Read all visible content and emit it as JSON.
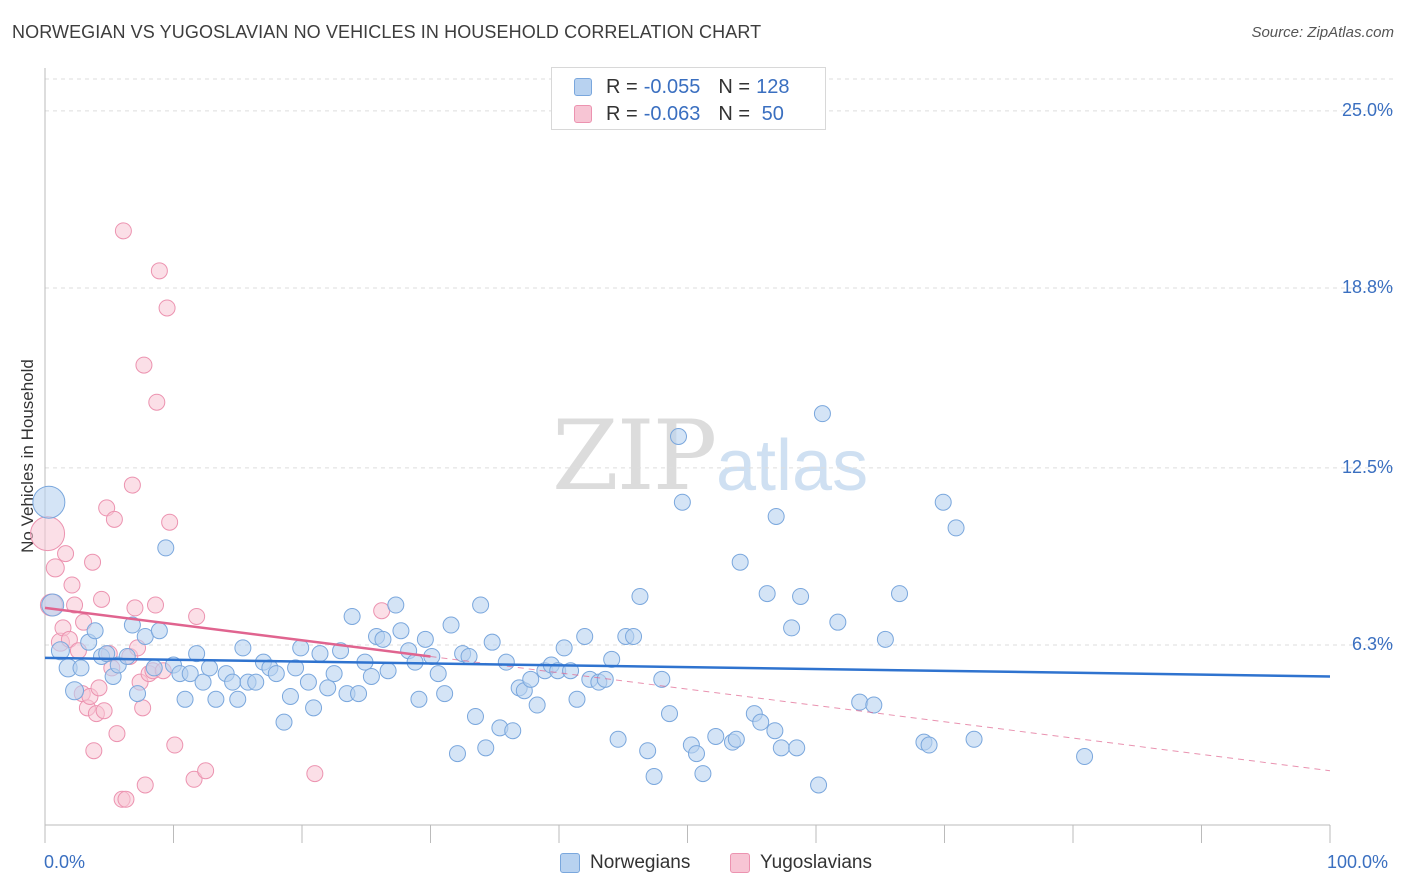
{
  "title": "NORWEGIAN VS YUGOSLAVIAN NO VEHICLES IN HOUSEHOLD CORRELATION CHART",
  "source": "Source: ZipAtlas.com",
  "watermark": {
    "zip": "ZIP",
    "atlas": "atlas"
  },
  "legend": {
    "rows": [
      {
        "r_label": "R =",
        "r_value": "-0.055",
        "n_label": "N =",
        "n_value": "128"
      },
      {
        "r_label": "R =",
        "r_value": "-0.063",
        "n_label": "N =",
        "n_value": " 50"
      }
    ]
  },
  "bottom_legend": {
    "series1": "Norwegians",
    "series2": "Yugoslavians"
  },
  "colors": {
    "blue_fill": "#b8d2f0",
    "blue_stroke": "#7aa7dd",
    "blue_line": "#2f73cf",
    "pink_fill": "#f7c5d4",
    "pink_stroke": "#ec93b0",
    "pink_line": "#e0648f",
    "tick_text": "#3a6fc0",
    "grid": "#dddddd"
  },
  "chart_data": {
    "type": "scatter",
    "title": "NORWEGIAN VS YUGOSLAVIAN NO VEHICLES IN HOUSEHOLD CORRELATION CHART",
    "xlabel": "",
    "ylabel": "No Vehicles in Household",
    "xlim": [
      0,
      100
    ],
    "ylim": [
      0,
      26.5
    ],
    "x_tick_labels": [
      "0.0%",
      "100.0%"
    ],
    "y_ticks": [
      6.3,
      12.5,
      18.8,
      25.0
    ],
    "y_tick_labels": [
      "6.3%",
      "12.5%",
      "18.8%",
      "25.0%"
    ],
    "grid": true,
    "legend_placement": "top-center",
    "series": [
      {
        "name": "Norwegians",
        "r": -0.055,
        "n": 128,
        "trend": {
          "x": [
            0,
            100
          ],
          "y": [
            5.85,
            5.2
          ]
        },
        "points": [
          [
            0.3,
            11.3,
            16
          ],
          [
            0.6,
            7.7,
            11
          ],
          [
            1.2,
            6.1,
            9
          ],
          [
            1.8,
            5.5,
            9
          ],
          [
            2.3,
            4.7,
            9
          ],
          [
            2.8,
            5.5,
            8
          ],
          [
            3.4,
            6.4,
            8
          ],
          [
            3.9,
            6.8,
            8
          ],
          [
            4.4,
            5.9,
            8
          ],
          [
            4.8,
            6.0,
            8
          ],
          [
            5.3,
            5.2,
            8
          ],
          [
            5.7,
            5.6,
            8
          ],
          [
            6.4,
            5.9,
            8
          ],
          [
            6.8,
            7.0,
            8
          ],
          [
            7.2,
            4.6,
            8
          ],
          [
            7.8,
            6.6,
            8
          ],
          [
            8.5,
            5.5,
            8
          ],
          [
            8.9,
            6.8,
            8
          ],
          [
            9.4,
            9.7,
            8
          ],
          [
            10.0,
            5.6,
            8
          ],
          [
            10.5,
            5.3,
            8
          ],
          [
            10.9,
            4.4,
            8
          ],
          [
            11.3,
            5.3,
            8
          ],
          [
            11.8,
            6.0,
            8
          ],
          [
            12.3,
            5.0,
            8
          ],
          [
            12.8,
            5.5,
            8
          ],
          [
            13.3,
            4.4,
            8
          ],
          [
            14.1,
            5.3,
            8
          ],
          [
            14.6,
            5.0,
            8
          ],
          [
            15.0,
            4.4,
            8
          ],
          [
            15.4,
            6.2,
            8
          ],
          [
            15.8,
            5.0,
            8
          ],
          [
            16.4,
            5.0,
            8
          ],
          [
            17.0,
            5.7,
            8
          ],
          [
            17.5,
            5.5,
            8
          ],
          [
            18.0,
            5.3,
            8
          ],
          [
            18.6,
            3.6,
            8
          ],
          [
            19.1,
            4.5,
            8
          ],
          [
            19.5,
            5.5,
            8
          ],
          [
            19.9,
            6.2,
            8
          ],
          [
            20.5,
            5.0,
            8
          ],
          [
            20.9,
            4.1,
            8
          ],
          [
            21.4,
            6.0,
            8
          ],
          [
            22.0,
            4.8,
            8
          ],
          [
            22.5,
            5.3,
            8
          ],
          [
            23.0,
            6.1,
            8
          ],
          [
            23.5,
            4.6,
            8
          ],
          [
            23.9,
            7.3,
            8
          ],
          [
            24.4,
            4.6,
            8
          ],
          [
            24.9,
            5.7,
            8
          ],
          [
            25.4,
            5.2,
            8
          ],
          [
            25.8,
            6.6,
            8
          ],
          [
            26.3,
            6.5,
            8
          ],
          [
            26.7,
            5.4,
            8
          ],
          [
            27.3,
            7.7,
            8
          ],
          [
            27.7,
            6.8,
            8
          ],
          [
            28.3,
            6.1,
            8
          ],
          [
            28.8,
            5.7,
            8
          ],
          [
            29.1,
            4.4,
            8
          ],
          [
            29.6,
            6.5,
            8
          ],
          [
            30.1,
            5.9,
            8
          ],
          [
            30.6,
            5.3,
            8
          ],
          [
            31.1,
            4.6,
            8
          ],
          [
            31.6,
            7.0,
            8
          ],
          [
            32.1,
            2.5,
            8
          ],
          [
            32.5,
            6.0,
            8
          ],
          [
            33.0,
            5.9,
            8
          ],
          [
            33.5,
            3.8,
            8
          ],
          [
            33.9,
            7.7,
            8
          ],
          [
            34.3,
            2.7,
            8
          ],
          [
            34.8,
            6.4,
            8
          ],
          [
            35.4,
            3.4,
            8
          ],
          [
            35.9,
            5.7,
            8
          ],
          [
            36.4,
            3.3,
            8
          ],
          [
            36.9,
            4.8,
            8
          ],
          [
            37.3,
            4.7,
            8
          ],
          [
            37.8,
            5.1,
            8
          ],
          [
            38.3,
            4.2,
            8
          ],
          [
            38.9,
            5.4,
            8
          ],
          [
            39.4,
            5.6,
            8
          ],
          [
            39.9,
            5.4,
            8
          ],
          [
            40.4,
            6.2,
            8
          ],
          [
            40.9,
            5.4,
            8
          ],
          [
            41.4,
            4.4,
            8
          ],
          [
            42.0,
            6.6,
            8
          ],
          [
            42.4,
            5.1,
            8
          ],
          [
            43.1,
            5.0,
            8
          ],
          [
            43.6,
            5.1,
            8
          ],
          [
            44.1,
            5.8,
            8
          ],
          [
            44.6,
            3.0,
            8
          ],
          [
            45.2,
            6.6,
            8
          ],
          [
            45.8,
            6.6,
            8
          ],
          [
            46.3,
            8.0,
            8
          ],
          [
            46.9,
            2.6,
            8
          ],
          [
            47.4,
            1.7,
            8
          ],
          [
            48.0,
            5.1,
            8
          ],
          [
            48.6,
            3.9,
            8
          ],
          [
            49.3,
            13.6,
            8
          ],
          [
            49.6,
            11.3,
            8
          ],
          [
            50.3,
            2.8,
            8
          ],
          [
            50.7,
            2.5,
            8
          ],
          [
            51.2,
            1.8,
            8
          ],
          [
            52.2,
            3.1,
            8
          ],
          [
            53.5,
            2.9,
            8
          ],
          [
            53.8,
            3.0,
            8
          ],
          [
            54.1,
            9.2,
            8
          ],
          [
            55.2,
            3.9,
            8
          ],
          [
            55.7,
            3.6,
            8
          ],
          [
            56.2,
            8.1,
            8
          ],
          [
            56.8,
            3.3,
            8
          ],
          [
            57.3,
            2.7,
            8
          ],
          [
            56.9,
            10.8,
            8
          ],
          [
            58.1,
            6.9,
            8
          ],
          [
            58.8,
            8.0,
            8
          ],
          [
            60.2,
            1.4,
            8
          ],
          [
            60.5,
            14.4,
            8
          ],
          [
            61.7,
            7.1,
            8
          ],
          [
            63.4,
            4.3,
            8
          ],
          [
            64.5,
            4.2,
            8
          ],
          [
            65.4,
            6.5,
            8
          ],
          [
            66.5,
            8.1,
            8
          ],
          [
            68.4,
            2.9,
            8
          ],
          [
            68.8,
            2.8,
            8
          ],
          [
            69.9,
            11.3,
            8
          ],
          [
            70.9,
            10.4,
            8
          ],
          [
            72.3,
            3.0,
            8
          ],
          [
            80.9,
            2.4,
            8
          ],
          [
            58.5,
            2.7,
            8
          ]
        ]
      },
      {
        "name": "Yugoslavians",
        "r": -0.063,
        "n": 50,
        "trend": {
          "x": [
            0,
            30
          ],
          "y": [
            7.6,
            5.9
          ]
        },
        "trend_extension": {
          "x": [
            30,
            100
          ],
          "y": [
            5.9,
            1.9
          ]
        },
        "points": [
          [
            0.2,
            10.2,
            17
          ],
          [
            0.5,
            7.7,
            11
          ],
          [
            0.8,
            9.0,
            9
          ],
          [
            1.2,
            6.4,
            9
          ],
          [
            1.4,
            6.9,
            8
          ],
          [
            1.6,
            9.5,
            8
          ],
          [
            1.9,
            6.5,
            8
          ],
          [
            2.1,
            8.4,
            8
          ],
          [
            2.3,
            7.7,
            8
          ],
          [
            2.6,
            6.1,
            8
          ],
          [
            2.9,
            4.6,
            8
          ],
          [
            3.0,
            7.1,
            8
          ],
          [
            3.3,
            4.1,
            8
          ],
          [
            3.5,
            4.5,
            8
          ],
          [
            3.7,
            9.2,
            8
          ],
          [
            3.8,
            2.6,
            8
          ],
          [
            4.0,
            3.9,
            8
          ],
          [
            4.2,
            4.8,
            8
          ],
          [
            4.4,
            7.9,
            8
          ],
          [
            4.6,
            4.0,
            8
          ],
          [
            4.8,
            11.1,
            8
          ],
          [
            5.0,
            6.0,
            8
          ],
          [
            5.2,
            5.5,
            8
          ],
          [
            5.4,
            10.7,
            8
          ],
          [
            5.6,
            3.2,
            8
          ],
          [
            6.0,
            0.9,
            8
          ],
          [
            6.3,
            0.9,
            8
          ],
          [
            6.6,
            5.9,
            8
          ],
          [
            6.8,
            11.9,
            8
          ],
          [
            7.0,
            7.6,
            8
          ],
          [
            7.2,
            6.2,
            8
          ],
          [
            7.4,
            5.0,
            8
          ],
          [
            7.6,
            4.1,
            8
          ],
          [
            7.7,
            16.1,
            8
          ],
          [
            7.8,
            1.4,
            8
          ],
          [
            8.1,
            5.3,
            8
          ],
          [
            8.4,
            5.4,
            8
          ],
          [
            8.6,
            7.7,
            8
          ],
          [
            8.7,
            14.8,
            8
          ],
          [
            8.9,
            19.4,
            8
          ],
          [
            9.2,
            5.4,
            8
          ],
          [
            9.5,
            18.1,
            8
          ],
          [
            9.7,
            10.6,
            8
          ],
          [
            10.1,
            2.8,
            8
          ],
          [
            11.6,
            1.6,
            8
          ],
          [
            11.8,
            7.3,
            8
          ],
          [
            12.5,
            1.9,
            8
          ],
          [
            21.0,
            1.8,
            8
          ],
          [
            26.2,
            7.5,
            8
          ],
          [
            6.1,
            20.8,
            8
          ]
        ]
      }
    ]
  }
}
